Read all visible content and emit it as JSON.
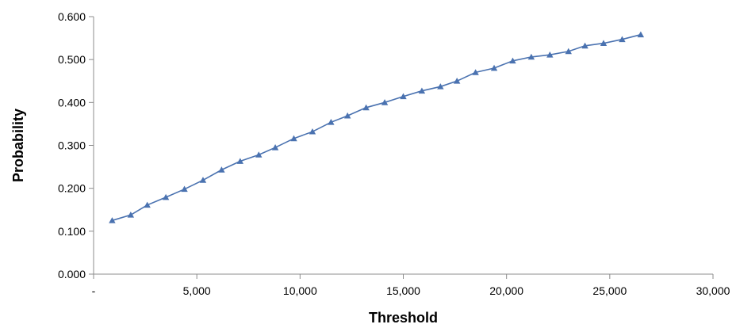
{
  "chart_data": {
    "type": "line",
    "title": "",
    "xlabel": "Threshold",
    "ylabel": "Probability",
    "xlim": [
      0,
      30000
    ],
    "ylim": [
      0,
      0.6
    ],
    "grid": false,
    "x_ticks": [
      {
        "value": 0,
        "label": "-"
      },
      {
        "value": 5000,
        "label": "5,000"
      },
      {
        "value": 10000,
        "label": "10,000"
      },
      {
        "value": 15000,
        "label": "15,000"
      },
      {
        "value": 20000,
        "label": "20,000"
      },
      {
        "value": 25000,
        "label": "25,000"
      },
      {
        "value": 30000,
        "label": "30,000"
      }
    ],
    "y_ticks": [
      {
        "value": 0.0,
        "label": "0.000"
      },
      {
        "value": 0.1,
        "label": "0.100"
      },
      {
        "value": 0.2,
        "label": "0.200"
      },
      {
        "value": 0.3,
        "label": "0.300"
      },
      {
        "value": 0.4,
        "label": "0.400"
      },
      {
        "value": 0.5,
        "label": "0.500"
      },
      {
        "value": 0.6,
        "label": "0.600"
      }
    ],
    "series": [
      {
        "color": "#4a72b0",
        "marker": "triangle",
        "x": [
          900,
          1800,
          2600,
          3500,
          4400,
          5300,
          6200,
          7100,
          8000,
          8800,
          9700,
          10600,
          11500,
          12300,
          13200,
          14100,
          15000,
          15900,
          16800,
          17600,
          18500,
          19400,
          20300,
          21200,
          22100,
          23000,
          23800,
          24700,
          25600,
          26500
        ],
        "y": [
          0.125,
          0.138,
          0.161,
          0.179,
          0.198,
          0.219,
          0.243,
          0.263,
          0.278,
          0.295,
          0.316,
          0.332,
          0.354,
          0.369,
          0.388,
          0.4,
          0.414,
          0.427,
          0.437,
          0.45,
          0.47,
          0.48,
          0.497,
          0.506,
          0.511,
          0.519,
          0.532,
          0.538,
          0.547,
          0.558
        ]
      }
    ]
  }
}
